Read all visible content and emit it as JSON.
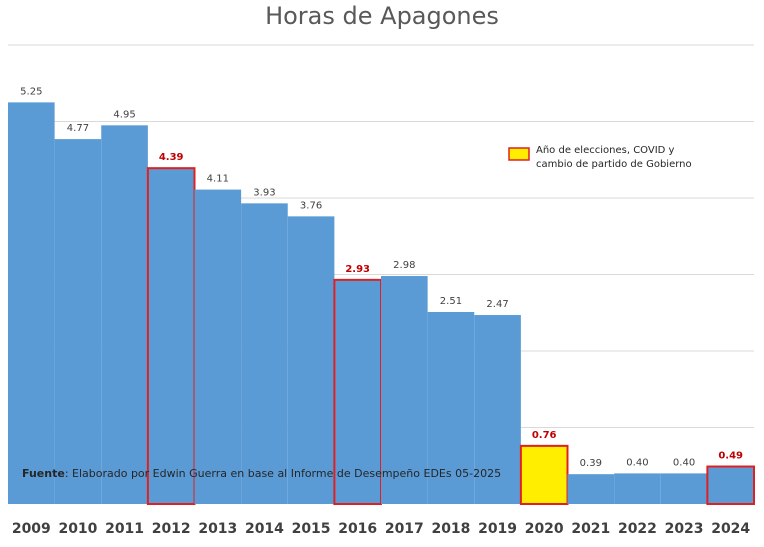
{
  "chart_data": {
    "type": "bar",
    "title": "Horas de Apagones",
    "xlabel": "",
    "ylabel": "",
    "ylim": [
      0,
      6
    ],
    "grid": true,
    "categories": [
      "2009",
      "2010",
      "2011",
      "2012",
      "2013",
      "2014",
      "2015",
      "2016",
      "2017",
      "2018",
      "2019",
      "2020",
      "2021",
      "2022",
      "2023",
      "2024"
    ],
    "values": [
      5.25,
      4.77,
      4.95,
      4.39,
      4.11,
      3.93,
      3.76,
      2.93,
      2.98,
      2.51,
      2.47,
      0.76,
      0.39,
      0.4,
      0.4,
      0.49
    ],
    "value_labels": [
      "5.25",
      "4.77",
      "4.95",
      "4.39",
      "4.11",
      "3.93",
      "3.76",
      "2.93",
      "2.98",
      "2.51",
      "2.47",
      "0.76",
      "0.39",
      "0.40",
      "0.40",
      "0.49"
    ],
    "highlighted": [
      "2012",
      "2016",
      "2020",
      "2024"
    ],
    "special": "2020",
    "legend": {
      "label_line1": "Año de elecciones, COVID y",
      "label_line2": "cambio de partido de Gobierno",
      "placement": "top-right"
    },
    "colors": {
      "bar": "#5b9bd5",
      "highlight_border": "#e02020",
      "special_fill": "#ffee00",
      "grid": "#d9d9d9"
    }
  },
  "source_note": {
    "label": "Fuente",
    "text": ": Elaborado por Edwin Guerra en base al Informe de Desempeño EDEs 05-2025"
  }
}
